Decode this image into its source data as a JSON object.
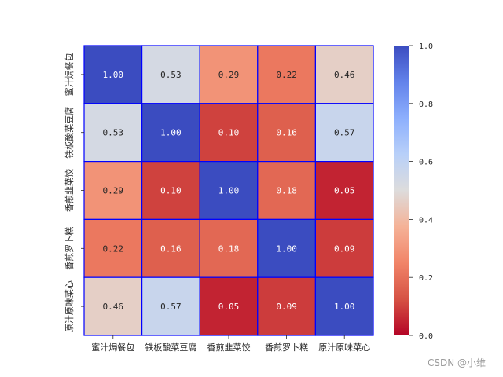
{
  "chart_data": {
    "type": "heatmap",
    "title": "",
    "xlabel": "",
    "ylabel": "",
    "row_labels": [
      "蜜汁焗餐包",
      "铁板酸菜豆腐",
      "香煎韭菜饺",
      "香煎罗卜糕",
      "原汁原味菜心"
    ],
    "col_labels": [
      "蜜汁焗餐包",
      "铁板酸菜豆腐",
      "香煎韭菜饺",
      "香煎罗卜糕",
      "原汁原味菜心"
    ],
    "values": [
      [
        1.0,
        0.53,
        0.29,
        0.22,
        0.46
      ],
      [
        0.53,
        1.0,
        0.1,
        0.16,
        0.57
      ],
      [
        0.29,
        0.1,
        1.0,
        0.18,
        0.05
      ],
      [
        0.22,
        0.16,
        0.18,
        1.0,
        0.09
      ],
      [
        0.46,
        0.57,
        0.05,
        0.09,
        1.0
      ]
    ],
    "value_format": "0.00",
    "colormap": "coolwarm_r",
    "vmin": 0.0,
    "vmax": 1.0,
    "colorbar_ticks": [
      "0.0",
      "0.2",
      "0.4",
      "0.6",
      "0.8",
      "1.0"
    ],
    "cell_border_color": "#0000ff"
  },
  "watermark": "CSDN @小维_"
}
